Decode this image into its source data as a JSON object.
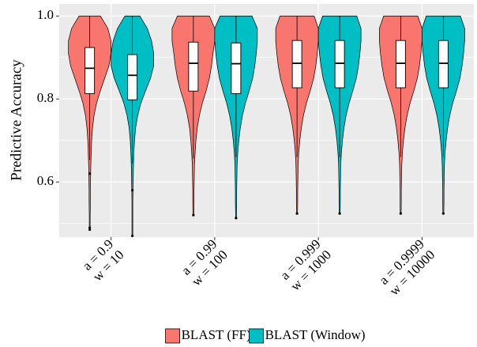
{
  "chart_data": {
    "type": "violin",
    "y_label": "Predictive Accuracy",
    "categories": [
      [
        "a = 0.9",
        "w = 10"
      ],
      [
        "a = 0.99",
        "w = 100"
      ],
      [
        "a = 0.999",
        "w = 1000"
      ],
      [
        "a = 0.9999",
        "w = 10000"
      ]
    ],
    "ylim": [
      0.467,
      1.029
    ],
    "yticks": [
      {
        "value": 1,
        "label": "1.0"
      },
      0.8,
      0.6
    ],
    "minor_yticks": [
      0.5,
      0.7,
      0.9
    ],
    "grid": true,
    "legend": "bottom",
    "density_y": [
      1.0,
      0.97,
      0.94,
      0.91,
      0.88,
      0.85,
      0.82,
      0.79,
      0.76,
      0.73,
      0.7,
      0.67,
      0.64,
      0.61,
      0.58,
      0.55,
      0.52,
      0.49,
      0.46
    ],
    "series": [
      {
        "name": "BLAST (FF)",
        "color": "#F8766D",
        "values": [
          {
            "min": 0.653,
            "q1": 0.813,
            "median": 0.874,
            "q3": 0.924,
            "max": 1.0,
            "outliers": [
              0.62,
              0.49,
              0.485
            ],
            "density": [
              0.5,
              0.85,
              1.0,
              1.0,
              0.9,
              0.7,
              0.5,
              0.32,
              0.2,
              0.13,
              0.09,
              0.07,
              0.05,
              0.04,
              0.03,
              0.03,
              0.02,
              0.02,
              0
            ]
          },
          {
            "min": 0.657,
            "q1": 0.819,
            "median": 0.886,
            "q3": 0.937,
            "max": 1.0,
            "outliers": [
              0.52
            ],
            "density": [
              0.75,
              1.0,
              1.0,
              0.92,
              0.85,
              0.75,
              0.6,
              0.42,
              0.28,
              0.18,
              0.12,
              0.08,
              0.05,
              0.04,
              0.03,
              0.03,
              0.02,
              0,
              0
            ]
          },
          {
            "min": 0.66,
            "q1": 0.827,
            "median": 0.886,
            "q3": 0.941,
            "max": 1.0,
            "outliers": [
              0.524
            ],
            "density": [
              0.8,
              1.0,
              1.0,
              0.95,
              0.88,
              0.78,
              0.62,
              0.44,
              0.3,
              0.2,
              0.13,
              0.08,
              0.05,
              0.04,
              0.03,
              0.03,
              0.02,
              0,
              0
            ]
          },
          {
            "min": 0.66,
            "q1": 0.827,
            "median": 0.886,
            "q3": 0.941,
            "max": 1.0,
            "outliers": [
              0.524
            ],
            "density": [
              0.8,
              1.0,
              1.0,
              0.95,
              0.88,
              0.78,
              0.62,
              0.44,
              0.3,
              0.2,
              0.13,
              0.08,
              0.05,
              0.04,
              0.03,
              0.03,
              0.02,
              0,
              0
            ]
          }
        ]
      },
      {
        "name": "BLAST (Window)",
        "color": "#00BFC4",
        "values": [
          {
            "min": 0.645,
            "q1": 0.798,
            "median": 0.857,
            "q3": 0.907,
            "max": 1.0,
            "outliers": [
              0.58,
              0.47
            ],
            "density": [
              0.35,
              0.7,
              0.9,
              1.0,
              1.0,
              0.85,
              0.62,
              0.4,
              0.25,
              0.15,
              0.1,
              0.07,
              0.05,
              0.04,
              0.03,
              0.02,
              0.02,
              0.02,
              0.02
            ]
          },
          {
            "min": 0.66,
            "q1": 0.813,
            "median": 0.885,
            "q3": 0.935,
            "max": 1.0,
            "outliers": [
              0.513
            ],
            "density": [
              0.75,
              1.0,
              1.0,
              0.95,
              0.88,
              0.78,
              0.62,
              0.44,
              0.3,
              0.2,
              0.13,
              0.08,
              0.05,
              0.04,
              0.03,
              0.03,
              0.02,
              0,
              0
            ]
          },
          {
            "min": 0.66,
            "q1": 0.827,
            "median": 0.886,
            "q3": 0.941,
            "max": 1.0,
            "outliers": [
              0.524
            ],
            "density": [
              0.8,
              1.0,
              1.0,
              0.95,
              0.88,
              0.78,
              0.62,
              0.44,
              0.3,
              0.2,
              0.13,
              0.08,
              0.05,
              0.04,
              0.03,
              0.03,
              0.02,
              0,
              0
            ]
          },
          {
            "min": 0.66,
            "q1": 0.827,
            "median": 0.886,
            "q3": 0.941,
            "max": 1.0,
            "outliers": [
              0.524
            ],
            "density": [
              0.8,
              1.0,
              1.0,
              0.95,
              0.88,
              0.78,
              0.62,
              0.44,
              0.3,
              0.2,
              0.13,
              0.08,
              0.05,
              0.04,
              0.03,
              0.03,
              0.02,
              0,
              0
            ]
          }
        ]
      }
    ]
  }
}
